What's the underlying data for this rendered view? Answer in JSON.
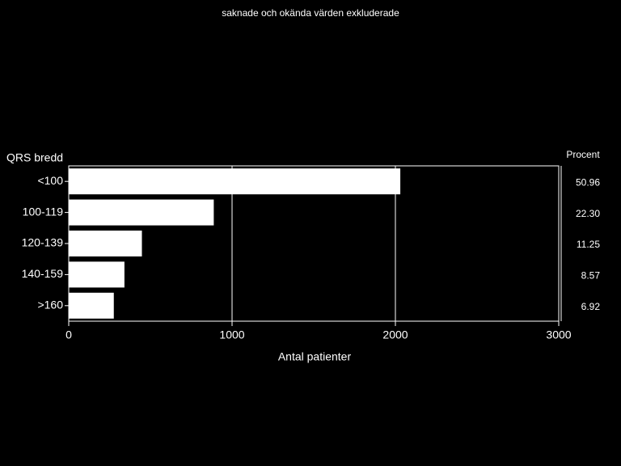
{
  "chart_data": {
    "type": "bar",
    "orientation": "horizontal",
    "title": "saknade och okända värden exkluderade",
    "category_axis_title": "QRS bredd",
    "x_axis_title": "Antal patienter",
    "categories": [
      "<100",
      "100-119",
      "120-139",
      "140-159",
      ">160"
    ],
    "values": [
      2030,
      888,
      448,
      341,
      276
    ],
    "color": "#ffffff",
    "xlim": [
      0,
      3000
    ],
    "xticks": [
      0,
      1000,
      2000,
      3000
    ],
    "grid": true,
    "percent": {
      "title": "Procent",
      "values": [
        50.96,
        22.3,
        11.25,
        8.57,
        6.92
      ],
      "value_labels": [
        "50.96",
        "22.30",
        "11.25",
        "8.57",
        "6.92"
      ]
    }
  }
}
